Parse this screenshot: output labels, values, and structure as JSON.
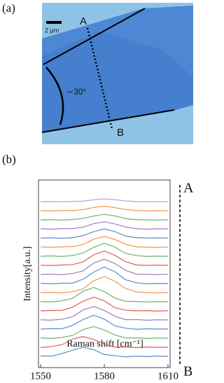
{
  "panel_a": {
    "label": "(a)",
    "scale_bar": "2 μm",
    "point_a": "A",
    "point_b": "B",
    "angle": "∼30°"
  },
  "panel_b_label": "(b)",
  "chart_data": {
    "type": "line",
    "xlabel": "Raman shift [cm⁻¹]",
    "ylabel": "Intensity[a.u.]",
    "annotations": [
      "A",
      "B"
    ],
    "x": [
      1550,
      1555,
      1560,
      1565,
      1570,
      1575,
      1580,
      1585,
      1590,
      1595,
      1600,
      1605,
      1610
    ],
    "xlim": [
      1550,
      1610
    ],
    "xticks": [
      1550,
      1580,
      1610
    ],
    "ylim": [
      0,
      20
    ],
    "series": [
      {
        "color": "#5b8fc7",
        "values": [
          1.05,
          1.02,
          1.3,
          1.68,
          2.0,
          1.75,
          1.2,
          1.08,
          0.95,
          1.03,
          0.98,
          1.04,
          1.0
        ]
      },
      {
        "color": "#d9605a",
        "values": [
          1.97,
          2.08,
          2.28,
          2.9,
          3.18,
          2.86,
          2.35,
          2.02,
          2.05,
          1.96,
          2.03,
          1.99,
          2.02
        ]
      },
      {
        "color": "#69b36a",
        "values": [
          3.03,
          2.97,
          3.08,
          3.3,
          3.95,
          4.28,
          3.9,
          3.36,
          3.02,
          3.04,
          2.97,
          3.02,
          3.0
        ]
      },
      {
        "color": "#5b8fc7",
        "values": [
          4.0,
          4.05,
          4.04,
          4.4,
          5.05,
          5.52,
          5.1,
          4.35,
          4.1,
          3.98,
          4.03,
          4.0,
          4.02
        ]
      },
      {
        "color": "#9b7fc0",
        "values": [
          5.02,
          4.98,
          5.08,
          5.36,
          6.1,
          6.48,
          6.05,
          5.4,
          5.03,
          5.05,
          4.97,
          5.02,
          5.0
        ]
      },
      {
        "color": "#d9605a",
        "values": [
          6.0,
          6.04,
          6.05,
          6.4,
          7.05,
          7.52,
          7.1,
          6.35,
          6.08,
          6.0,
          6.03,
          5.98,
          6.02
        ]
      },
      {
        "color": "#69b36a",
        "values": [
          7.02,
          6.98,
          7.1,
          7.38,
          8.15,
          8.58,
          8.12,
          7.42,
          7.05,
          7.03,
          6.98,
          7.02,
          7.0
        ]
      },
      {
        "color": "#f0954a",
        "values": [
          8.0,
          8.04,
          7.98,
          8.1,
          8.42,
          9.3,
          9.78,
          9.25,
          8.48,
          8.08,
          8.02,
          7.98,
          8.03
        ]
      },
      {
        "color": "#5b8fc7",
        "values": [
          9.03,
          8.98,
          9.04,
          9.05,
          9.48,
          10.25,
          10.82,
          10.3,
          9.42,
          9.1,
          8.98,
          9.02,
          9.0
        ]
      },
      {
        "color": "#9b7fc0",
        "values": [
          10.0,
          10.04,
          9.98,
          10.1,
          10.4,
          11.25,
          11.68,
          11.2,
          10.46,
          10.05,
          10.02,
          9.98,
          10.02
        ]
      },
      {
        "color": "#d9605a",
        "values": [
          11.02,
          10.98,
          11.04,
          11.08,
          11.38,
          12.16,
          12.58,
          12.1,
          11.42,
          11.05,
          11.0,
          11.03,
          11.0
        ]
      },
      {
        "color": "#69b36a",
        "values": [
          12.0,
          12.04,
          11.98,
          12.08,
          12.36,
          12.98,
          13.42,
          13.02,
          12.32,
          12.08,
          11.98,
          12.02,
          12.0
        ]
      },
      {
        "color": "#f0954a",
        "values": [
          13.02,
          12.98,
          13.03,
          13.06,
          13.28,
          13.88,
          14.18,
          13.84,
          13.32,
          13.04,
          13.0,
          12.98,
          13.02
        ]
      },
      {
        "color": "#5b8fc7",
        "values": [
          14.0,
          14.03,
          13.98,
          14.04,
          14.27,
          14.7,
          15.0,
          14.72,
          14.22,
          14.05,
          14.0,
          14.02,
          14.0
        ]
      },
      {
        "color": "#9b7fc0",
        "values": [
          15.02,
          14.98,
          15.03,
          15.04,
          15.2,
          15.58,
          15.8,
          15.55,
          15.22,
          15.03,
          14.98,
          15.02,
          15.0
        ]
      },
      {
        "color": "#69b36a",
        "values": [
          16.0,
          16.02,
          15.98,
          16.03,
          16.16,
          16.42,
          16.6,
          16.44,
          16.14,
          16.02,
          16.0,
          15.98,
          16.01
        ]
      },
      {
        "color": "#f0954a",
        "values": [
          17.01,
          16.98,
          17.02,
          17.02,
          17.12,
          17.36,
          17.5,
          17.34,
          17.14,
          17.02,
          16.99,
          17.01,
          17.0
        ]
      },
      {
        "color": "#b9a3d6",
        "values": [
          18.0,
          18.01,
          17.99,
          18.02,
          18.06,
          18.2,
          18.3,
          18.22,
          18.08,
          18.01,
          18.0,
          17.99,
          18.0
        ]
      }
    ]
  }
}
